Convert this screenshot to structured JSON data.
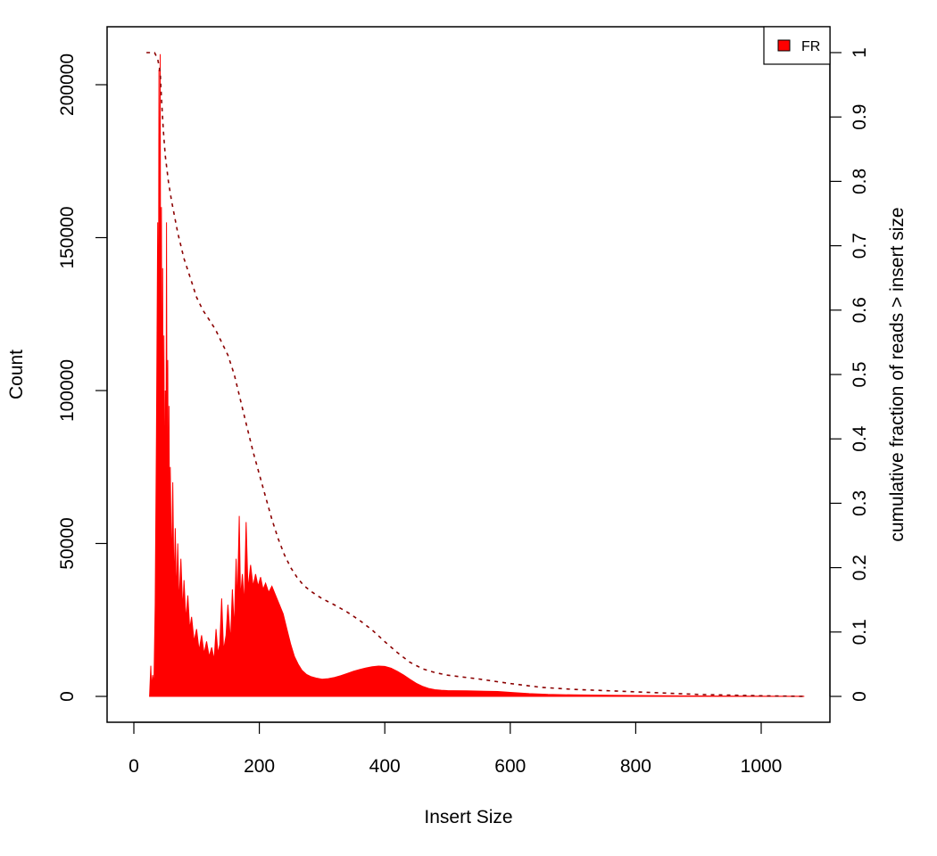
{
  "chart_data": {
    "type": "histogram_with_cumulative_line",
    "title": "",
    "xlabel": "Insert Size",
    "ylabel": "Count",
    "y2label": "cumulative fraction of reads > insert size",
    "xlim": [
      0,
      1070
    ],
    "ylim": [
      0,
      212000
    ],
    "y2lim": [
      0,
      1
    ],
    "x_ticks": [
      "0",
      "200",
      "400",
      "600",
      "800",
      "1000"
    ],
    "y_ticks": [
      "0",
      "50000",
      "100000",
      "150000",
      "200000"
    ],
    "y2_ticks": [
      "0",
      "0.1",
      "0.2",
      "0.3",
      "0.4",
      "0.5",
      "0.6",
      "0.7",
      "0.8",
      "0.9",
      "1"
    ],
    "legend": {
      "position": "top-right",
      "entries": [
        {
          "label": "FR",
          "color": "#ff0000"
        }
      ]
    },
    "grid": false,
    "colors": {
      "histogram": "#ff0000",
      "cumulative": "#8b0000"
    },
    "series": [
      {
        "name": "FR",
        "kind": "histogram",
        "points": [
          [
            25,
            0
          ],
          [
            27,
            10000
          ],
          [
            28,
            3000
          ],
          [
            30,
            7000
          ],
          [
            32,
            4000
          ],
          [
            34,
            30000
          ],
          [
            36,
            85000
          ],
          [
            38,
            155000
          ],
          [
            39,
            80000
          ],
          [
            40,
            205000
          ],
          [
            41,
            120000
          ],
          [
            42,
            210000
          ],
          [
            43,
            90000
          ],
          [
            44,
            160000
          ],
          [
            45,
            60000
          ],
          [
            46,
            140000
          ],
          [
            47,
            55000
          ],
          [
            48,
            118000
          ],
          [
            49,
            50000
          ],
          [
            50,
            100000
          ],
          [
            51,
            48000
          ],
          [
            52,
            155000
          ],
          [
            53,
            60000
          ],
          [
            54,
            110000
          ],
          [
            55,
            45000
          ],
          [
            56,
            95000
          ],
          [
            57,
            42000
          ],
          [
            58,
            75000
          ],
          [
            60,
            40000
          ],
          [
            62,
            70000
          ],
          [
            64,
            35000
          ],
          [
            66,
            55000
          ],
          [
            68,
            32000
          ],
          [
            70,
            50000
          ],
          [
            72,
            30000
          ],
          [
            75,
            45000
          ],
          [
            78,
            28000
          ],
          [
            80,
            38000
          ],
          [
            83,
            25000
          ],
          [
            86,
            33000
          ],
          [
            89,
            22000
          ],
          [
            92,
            26000
          ],
          [
            96,
            18000
          ],
          [
            100,
            22000
          ],
          [
            104,
            15000
          ],
          [
            108,
            20000
          ],
          [
            112,
            14000
          ],
          [
            116,
            18000
          ],
          [
            120,
            13000
          ],
          [
            124,
            16000
          ],
          [
            128,
            12000
          ],
          [
            131,
            22000
          ],
          [
            134,
            14000
          ],
          [
            137,
            17000
          ],
          [
            140,
            32000
          ],
          [
            143,
            15000
          ],
          [
            147,
            20000
          ],
          [
            150,
            30000
          ],
          [
            154,
            18000
          ],
          [
            157,
            35000
          ],
          [
            160,
            22000
          ],
          [
            163,
            45000
          ],
          [
            165,
            30000
          ],
          [
            168,
            59000
          ],
          [
            170,
            32000
          ],
          [
            173,
            40000
          ],
          [
            176,
            30000
          ],
          [
            179,
            57000
          ],
          [
            182,
            35000
          ],
          [
            186,
            43000
          ],
          [
            190,
            36000
          ],
          [
            194,
            40000
          ],
          [
            198,
            36000
          ],
          [
            202,
            39000
          ],
          [
            206,
            35000
          ],
          [
            210,
            37000
          ],
          [
            215,
            34000
          ],
          [
            220,
            36000
          ],
          [
            226,
            33000
          ],
          [
            232,
            30000
          ],
          [
            238,
            27000
          ],
          [
            244,
            22000
          ],
          [
            250,
            17000
          ],
          [
            256,
            13000
          ],
          [
            262,
            10500
          ],
          [
            268,
            8500
          ],
          [
            275,
            7200
          ],
          [
            282,
            6500
          ],
          [
            290,
            6000
          ],
          [
            300,
            5600
          ],
          [
            310,
            5800
          ],
          [
            320,
            6200
          ],
          [
            330,
            6800
          ],
          [
            340,
            7500
          ],
          [
            350,
            8200
          ],
          [
            360,
            8800
          ],
          [
            370,
            9300
          ],
          [
            380,
            9700
          ],
          [
            390,
            9900
          ],
          [
            400,
            9800
          ],
          [
            410,
            9200
          ],
          [
            420,
            8200
          ],
          [
            430,
            7000
          ],
          [
            440,
            5600
          ],
          [
            450,
            4300
          ],
          [
            460,
            3300
          ],
          [
            470,
            2600
          ],
          [
            480,
            2200
          ],
          [
            490,
            2000
          ],
          [
            500,
            1900
          ],
          [
            530,
            1800
          ],
          [
            560,
            1700
          ],
          [
            580,
            1600
          ],
          [
            600,
            1300
          ],
          [
            630,
            900
          ],
          [
            660,
            650
          ],
          [
            700,
            500
          ],
          [
            760,
            350
          ],
          [
            820,
            250
          ],
          [
            900,
            150
          ],
          [
            980,
            80
          ],
          [
            1068,
            40
          ]
        ]
      },
      {
        "name": "FR",
        "kind": "cumulative",
        "axis": "right",
        "points": [
          [
            20,
            1
          ],
          [
            33,
            1
          ],
          [
            38,
            0.99
          ],
          [
            42,
            0.97
          ],
          [
            44,
            0.93
          ],
          [
            47,
            0.88
          ],
          [
            50,
            0.84
          ],
          [
            55,
            0.8
          ],
          [
            60,
            0.77
          ],
          [
            70,
            0.72
          ],
          [
            80,
            0.68
          ],
          [
            90,
            0.65
          ],
          [
            100,
            0.62
          ],
          [
            110,
            0.6
          ],
          [
            120,
            0.585
          ],
          [
            130,
            0.57
          ],
          [
            140,
            0.55
          ],
          [
            150,
            0.53
          ],
          [
            160,
            0.5
          ],
          [
            170,
            0.46
          ],
          [
            180,
            0.42
          ],
          [
            190,
            0.38
          ],
          [
            200,
            0.345
          ],
          [
            210,
            0.31
          ],
          [
            220,
            0.275
          ],
          [
            230,
            0.245
          ],
          [
            240,
            0.22
          ],
          [
            250,
            0.2
          ],
          [
            260,
            0.185
          ],
          [
            270,
            0.173
          ],
          [
            280,
            0.165
          ],
          [
            290,
            0.158
          ],
          [
            300,
            0.152
          ],
          [
            320,
            0.142
          ],
          [
            340,
            0.131
          ],
          [
            360,
            0.118
          ],
          [
            380,
            0.103
          ],
          [
            400,
            0.085
          ],
          [
            420,
            0.068
          ],
          [
            440,
            0.053
          ],
          [
            460,
            0.043
          ],
          [
            480,
            0.037
          ],
          [
            500,
            0.033
          ],
          [
            550,
            0.027
          ],
          [
            600,
            0.02
          ],
          [
            650,
            0.014
          ],
          [
            700,
            0.011
          ],
          [
            750,
            0.009
          ],
          [
            800,
            0.007
          ],
          [
            850,
            0.005
          ],
          [
            900,
            0.003
          ],
          [
            950,
            0.002
          ],
          [
            1000,
            0.001
          ],
          [
            1068,
            0
          ]
        ]
      }
    ]
  }
}
